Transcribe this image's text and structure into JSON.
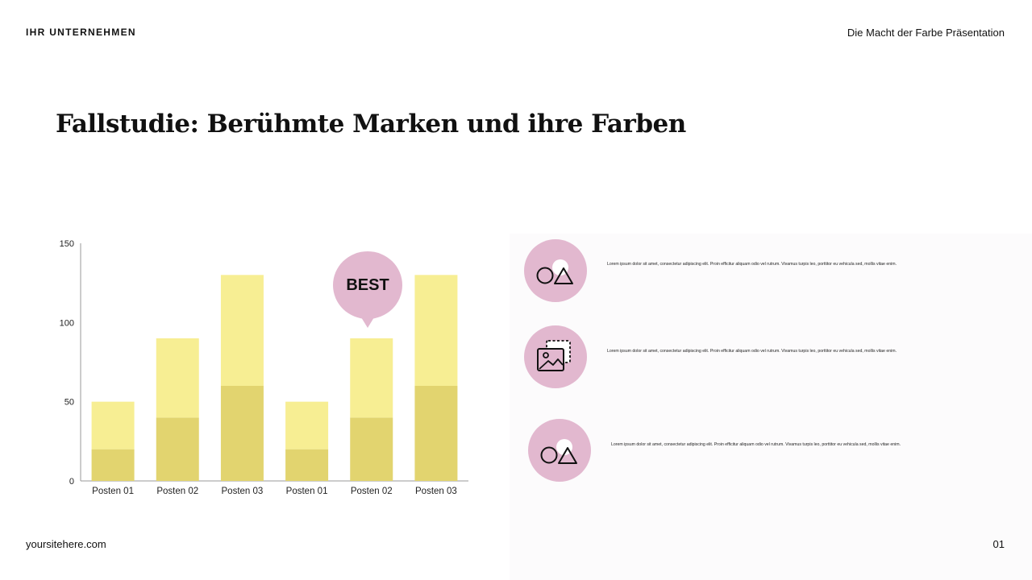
{
  "header": {
    "company": "IHR UNTERNEHMEN",
    "presentation_title": "Die Macht der Farbe Präsentation"
  },
  "slide": {
    "title": "Fallstudie: Berühmte Marken und ihre Farben"
  },
  "footer": {
    "website": "yoursitehere.com",
    "page_number": "01"
  },
  "badge": {
    "label": "BEST"
  },
  "colors": {
    "bar_bottom": "#e2d46f",
    "bar_top": "#f7ee93",
    "accent_pink": "#e2b8cf"
  },
  "chart_data": {
    "type": "bar",
    "stacked": true,
    "categories": [
      "Posten 01",
      "Posten 02",
      "Posten 03",
      "Posten 01",
      "Posten 02",
      "Posten 03"
    ],
    "series": [
      {
        "values": [
          20,
          40,
          60,
          20,
          40,
          60
        ]
      },
      {
        "values": [
          30,
          50,
          70,
          30,
          50,
          70
        ]
      }
    ],
    "ylim": [
      0,
      150
    ],
    "yticks": [
      0,
      50,
      100,
      150
    ],
    "grid": false,
    "legend": "none"
  },
  "features": [
    {
      "icon": "shapes-icon",
      "text": "Lorem ipsum dolor sit amet, consectetur adipiscing elit. Proin efficitur aliquam odio vel rutrum. Vivamus turpis leo, porttitor eu vehicula sed, mollis vitae enim."
    },
    {
      "icon": "image-gallery-icon",
      "text": "Lorem ipsum dolor sit amet, consectetur adipiscing elit. Proin efficitur aliquam odio vel rutrum. Vivamus turpis leo, porttitor eu vehicula sed, mollis vitae enim."
    },
    {
      "icon": "shapes-icon",
      "text": "Lorem ipsum dolor sit amet, consectetur adipiscing elit. Proin efficitur aliquam odio vel rutrum. Vivamus turpis leo, porttitor eu vehicula sed, mollis vitae enim."
    }
  ]
}
